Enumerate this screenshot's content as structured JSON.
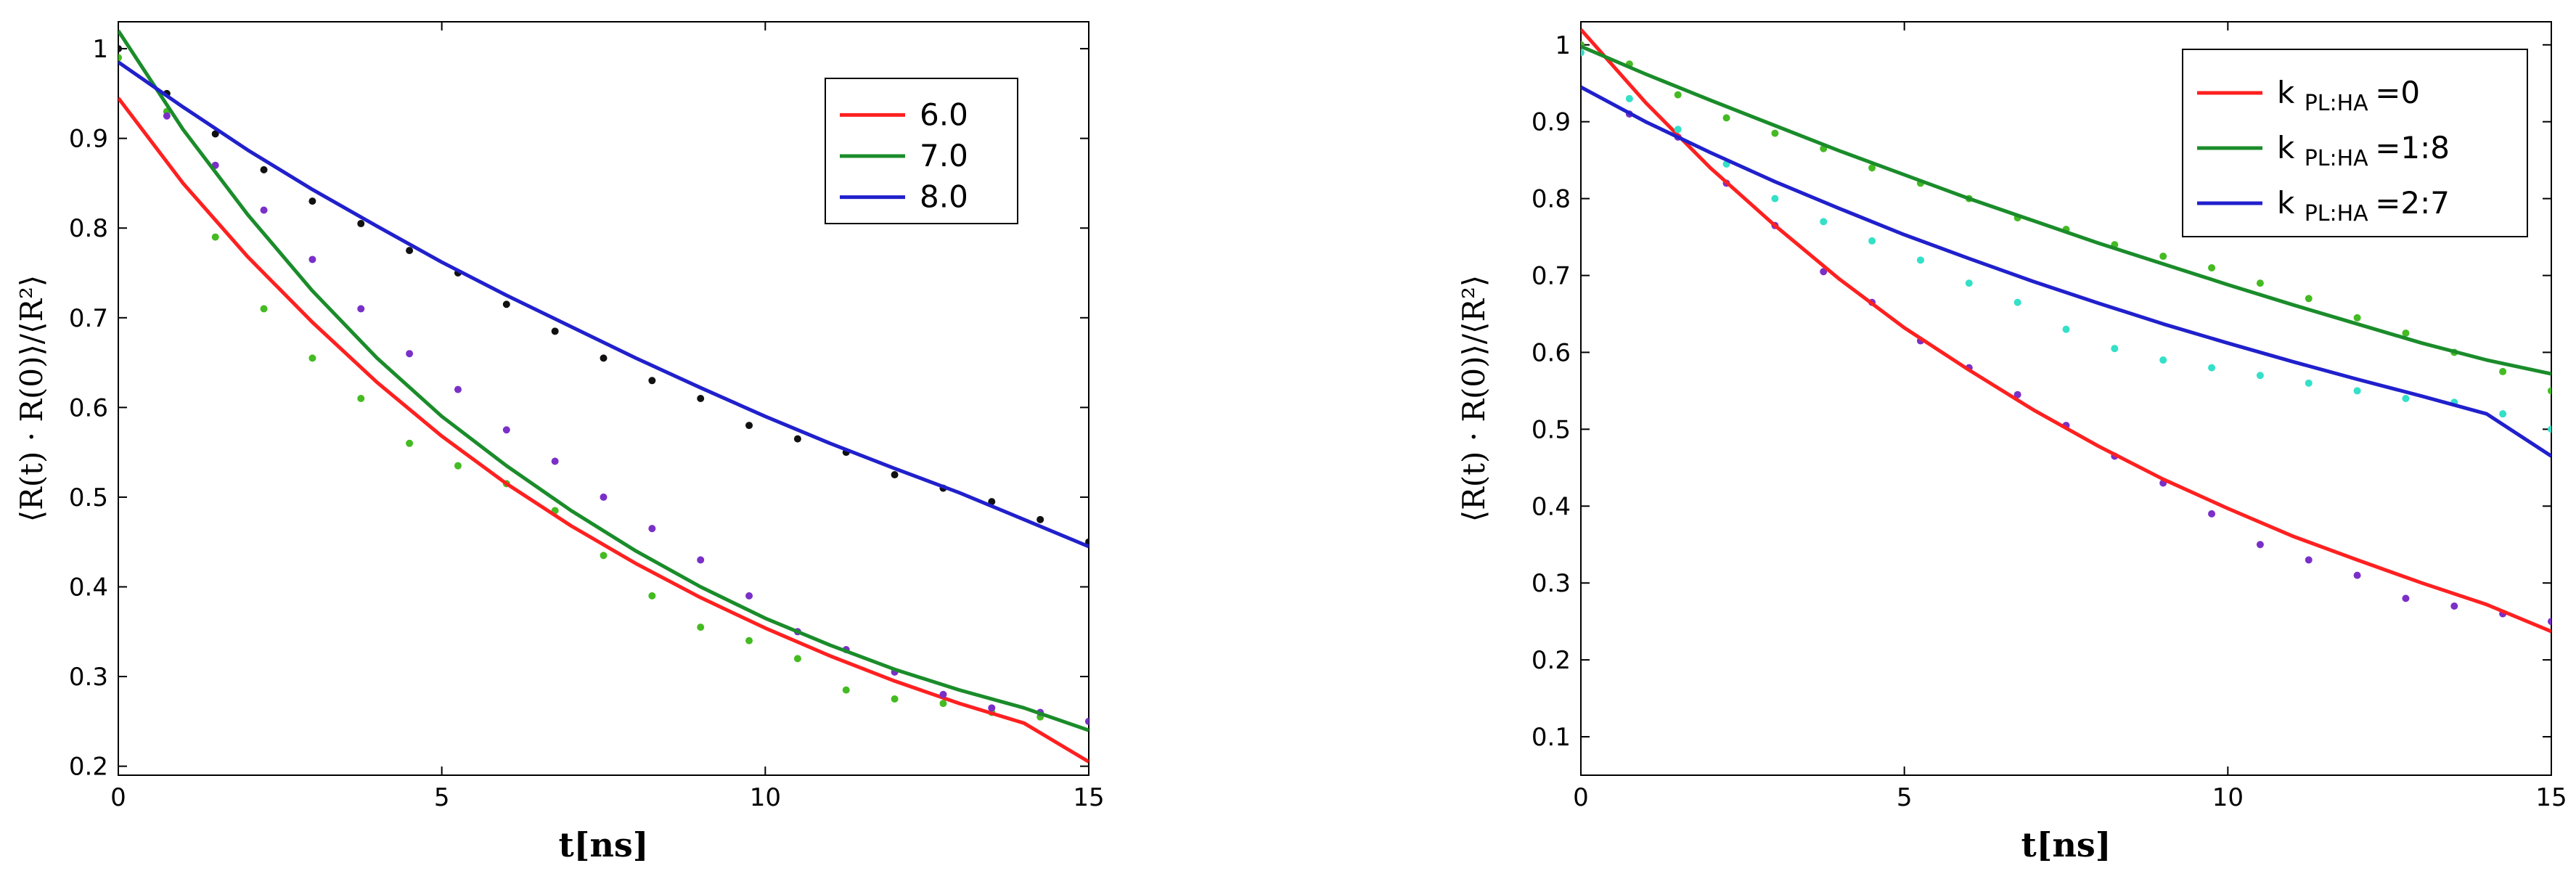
{
  "chart_data": [
    {
      "type": "scatter",
      "xlabel": "t[ns]",
      "ylabel": "⟨R(t) · R(0)⟩/⟨R²⟩",
      "xlim": [
        0,
        15
      ],
      "ylim": [
        0.19,
        1.03
      ],
      "xticks": [
        0,
        5,
        10,
        15
      ],
      "yticks": [
        0.2,
        0.3,
        0.4,
        0.5,
        0.6,
        0.7,
        0.8,
        0.9,
        1
      ],
      "legend_position": "top-right",
      "grid": false,
      "series": [
        {
          "name": "6.0",
          "color": "#ff2020",
          "marker_color": "#44bb22",
          "fit": {
            "x": [
              0,
              1,
              2,
              3,
              4,
              5,
              6,
              7,
              8,
              9,
              10,
              11,
              12,
              13,
              14,
              15
            ],
            "y": [
              0.945,
              0.85,
              0.768,
              0.695,
              0.628,
              0.568,
              0.515,
              0.468,
              0.426,
              0.388,
              0.354,
              0.323,
              0.295,
              0.27,
              0.248,
              0.205
            ]
          },
          "points": {
            "x": [
              0,
              0.75,
              1.5,
              2.25,
              3,
              3.75,
              4.5,
              5.25,
              6,
              6.75,
              7.5,
              8.25,
              9,
              9.75,
              10.5,
              11.25,
              12,
              12.75,
              13.5,
              14.25,
              15
            ],
            "y": [
              0.99,
              0.93,
              0.79,
              0.71,
              0.655,
              0.61,
              0.56,
              0.535,
              0.515,
              0.485,
              0.435,
              0.39,
              0.355,
              0.34,
              0.32,
              0.285,
              0.275,
              0.27,
              0.26,
              0.255,
              0.25
            ]
          }
        },
        {
          "name": "7.0",
          "color": "#1a8c2a",
          "marker_color": "#7a30c8",
          "fit": {
            "x": [
              0,
              1,
              2,
              3,
              4,
              5,
              6,
              7,
              8,
              9,
              10,
              11,
              12,
              13,
              14,
              15
            ],
            "y": [
              1.02,
              0.91,
              0.815,
              0.73,
              0.655,
              0.59,
              0.535,
              0.485,
              0.44,
              0.4,
              0.365,
              0.335,
              0.308,
              0.285,
              0.265,
              0.24
            ]
          },
          "points": {
            "x": [
              0,
              0.75,
              1.5,
              2.25,
              3,
              3.75,
              4.5,
              5.25,
              6,
              6.75,
              7.5,
              8.25,
              9,
              9.75,
              10.5,
              11.25,
              12,
              12.75,
              13.5,
              14.25,
              15
            ],
            "y": [
              1.0,
              0.925,
              0.87,
              0.82,
              0.765,
              0.71,
              0.66,
              0.62,
              0.575,
              0.54,
              0.5,
              0.465,
              0.43,
              0.39,
              0.35,
              0.33,
              0.305,
              0.28,
              0.265,
              0.26,
              0.25
            ]
          }
        },
        {
          "name": "8.0",
          "color": "#2020cc",
          "marker_color": "#111111",
          "fit": {
            "x": [
              0,
              1,
              2,
              3,
              4,
              5,
              6,
              7,
              8,
              9,
              10,
              11,
              12,
              13,
              14,
              15
            ],
            "y": [
              0.985,
              0.935,
              0.887,
              0.843,
              0.802,
              0.762,
              0.725,
              0.69,
              0.655,
              0.622,
              0.59,
              0.56,
              0.532,
              0.505,
              0.475,
              0.445
            ]
          },
          "points": {
            "x": [
              0,
              0.75,
              1.5,
              2.25,
              3,
              3.75,
              4.5,
              5.25,
              6,
              6.75,
              7.5,
              8.25,
              9,
              9.75,
              10.5,
              11.25,
              12,
              12.75,
              13.5,
              14.25,
              15
            ],
            "y": [
              1.0,
              0.95,
              0.905,
              0.865,
              0.83,
              0.805,
              0.775,
              0.75,
              0.715,
              0.685,
              0.655,
              0.63,
              0.61,
              0.58,
              0.565,
              0.55,
              0.525,
              0.51,
              0.495,
              0.475,
              0.45
            ]
          }
        }
      ]
    },
    {
      "type": "scatter",
      "xlabel": "t[ns]",
      "ylabel": "⟨R(t) · R(0)⟩/⟨R²⟩",
      "xlim": [
        0,
        15
      ],
      "ylim": [
        0.05,
        1.03
      ],
      "xticks": [
        0,
        5,
        10,
        15
      ],
      "yticks": [
        0.1,
        0.2,
        0.3,
        0.4,
        0.5,
        0.6,
        0.7,
        0.8,
        0.9,
        1
      ],
      "legend_position": "top-right",
      "grid": false,
      "series": [
        {
          "name": "k",
          "subscript": "PL:HA",
          "suffix": "=0",
          "color": "#ff2020",
          "marker_color": "#7a30c8",
          "fit": {
            "x": [
              0,
              1,
              2,
              3,
              4,
              5,
              6,
              7,
              8,
              9,
              10,
              11,
              12,
              13,
              14,
              15
            ],
            "y": [
              1.02,
              0.925,
              0.84,
              0.765,
              0.695,
              0.632,
              0.577,
              0.525,
              0.478,
              0.435,
              0.397,
              0.361,
              0.33,
              0.3,
              0.272,
              0.237
            ]
          },
          "points": {
            "x": [
              0,
              0.75,
              1.5,
              2.25,
              3,
              3.75,
              4.5,
              5.25,
              6,
              6.75,
              7.5,
              8.25,
              9,
              9.75,
              10.5,
              11.25,
              12,
              12.75,
              13.5,
              14.25,
              15
            ],
            "y": [
              1.0,
              0.91,
              0.88,
              0.82,
              0.765,
              0.705,
              0.665,
              0.615,
              0.58,
              0.545,
              0.505,
              0.465,
              0.43,
              0.39,
              0.35,
              0.33,
              0.31,
              0.28,
              0.27,
              0.26,
              0.25
            ]
          }
        },
        {
          "name": "k",
          "subscript": "PL:HA",
          "suffix": "=1:8",
          "color": "#1a8c2a",
          "marker_color": "#44bb22",
          "fit": {
            "x": [
              0,
              1,
              2,
              3,
              4,
              5,
              6,
              7,
              8,
              9,
              10,
              11,
              12,
              13,
              14,
              15
            ],
            "y": [
              0.998,
              0.962,
              0.928,
              0.895,
              0.862,
              0.831,
              0.8,
              0.771,
              0.742,
              0.715,
              0.688,
              0.662,
              0.637,
              0.612,
              0.59,
              0.572
            ]
          },
          "points": {
            "x": [
              0,
              0.75,
              1.5,
              2.25,
              3,
              3.75,
              4.5,
              5.25,
              6,
              6.75,
              7.5,
              8.25,
              9,
              9.75,
              10.5,
              11.25,
              12,
              12.75,
              13.5,
              14.25,
              15
            ],
            "y": [
              1.0,
              0.975,
              0.935,
              0.905,
              0.885,
              0.865,
              0.84,
              0.82,
              0.8,
              0.775,
              0.76,
              0.74,
              0.725,
              0.71,
              0.69,
              0.67,
              0.645,
              0.625,
              0.6,
              0.575,
              0.55
            ]
          }
        },
        {
          "name": "k",
          "subscript": "PL:HA",
          "suffix": "=2:7",
          "color": "#2020cc",
          "marker_color": "#33e0c8",
          "fit": {
            "x": [
              0,
              1,
              2,
              3,
              4,
              5,
              6,
              7,
              8,
              9,
              10,
              11,
              12,
              13,
              14,
              15
            ],
            "y": [
              0.945,
              0.9,
              0.86,
              0.822,
              0.787,
              0.753,
              0.722,
              0.692,
              0.664,
              0.637,
              0.612,
              0.588,
              0.565,
              0.543,
              0.52,
              0.465
            ]
          },
          "points": {
            "x": [
              0,
              0.75,
              1.5,
              2.25,
              3,
              3.75,
              4.5,
              5.25,
              6,
              6.75,
              7.5,
              8.25,
              9,
              9.75,
              10.5,
              11.25,
              12,
              12.75,
              13.5,
              14.25,
              15
            ],
            "y": [
              0.99,
              0.93,
              0.89,
              0.845,
              0.8,
              0.77,
              0.745,
              0.72,
              0.69,
              0.665,
              0.63,
              0.605,
              0.59,
              0.58,
              0.57,
              0.56,
              0.55,
              0.54,
              0.535,
              0.52,
              0.5
            ]
          }
        }
      ]
    }
  ]
}
